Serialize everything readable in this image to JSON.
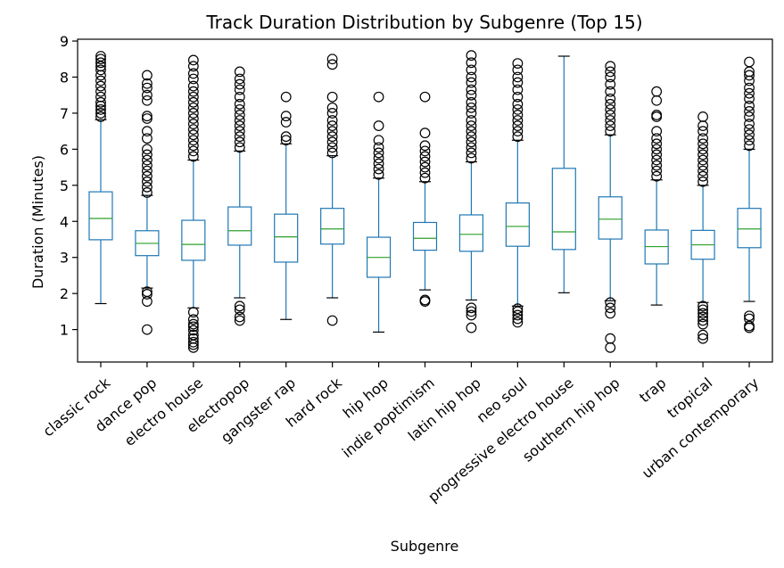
{
  "chart_data": {
    "type": "box",
    "title": "Track Duration Distribution by Subgenre (Top 15)",
    "xlabel": "Subgenre",
    "ylabel": "Duration (Minutes)",
    "ylim": [
      0.1,
      9.05
    ],
    "yticks": [
      1,
      2,
      3,
      4,
      5,
      6,
      7,
      8,
      9
    ],
    "grid": false,
    "colors": {
      "box": "#1f77b4",
      "median": "#2ca02c",
      "outlier": "#000000"
    },
    "categories": [
      "classic rock",
      "dance pop",
      "electro house",
      "electropop",
      "gangster rap",
      "hard rock",
      "hip hop",
      "indie poptimism",
      "latin hip hop",
      "neo soul",
      "progressive electro house",
      "southern hip hop",
      "trap",
      "tropical",
      "urban contemporary"
    ],
    "boxes": [
      {
        "whisker_low": 1.72,
        "q1": 3.49,
        "median": 4.08,
        "q3": 4.82,
        "whisker_high": 6.82,
        "outliers": [
          6.9,
          7.0,
          7.1,
          7.2,
          7.3,
          7.45,
          7.6,
          7.75,
          7.9,
          8.05,
          8.2,
          8.3,
          8.4,
          8.5,
          8.58
        ]
      },
      {
        "whisker_low": 2.15,
        "q1": 3.05,
        "median": 3.39,
        "q3": 3.74,
        "whisker_high": 4.72,
        "outliers": [
          1.0,
          1.78,
          1.98,
          2.05,
          4.8,
          4.95,
          5.1,
          5.25,
          5.4,
          5.55,
          5.7,
          5.85,
          6.0,
          6.3,
          6.5,
          6.85,
          6.92,
          7.35,
          7.5,
          7.7,
          7.82,
          8.05
        ]
      },
      {
        "whisker_low": 1.6,
        "q1": 2.92,
        "median": 3.36,
        "q3": 4.03,
        "whisker_high": 5.7,
        "outliers": [
          0.5,
          0.58,
          0.65,
          0.75,
          0.85,
          0.98,
          1.08,
          1.15,
          1.28,
          1.48,
          5.8,
          5.95,
          6.1,
          6.25,
          6.4,
          6.55,
          6.7,
          6.85,
          7.0,
          7.15,
          7.3,
          7.45,
          7.6,
          7.75,
          7.95,
          8.1,
          8.3,
          8.47
        ]
      },
      {
        "whisker_low": 1.88,
        "q1": 3.34,
        "median": 3.74,
        "q3": 4.4,
        "whisker_high": 5.95,
        "outliers": [
          1.25,
          1.35,
          1.55,
          1.65,
          6.05,
          6.2,
          6.35,
          6.5,
          6.65,
          6.8,
          6.95,
          7.1,
          7.25,
          7.45,
          7.65,
          7.8,
          7.95,
          8.15
        ]
      },
      {
        "whisker_low": 1.28,
        "q1": 2.87,
        "median": 3.57,
        "q3": 4.2,
        "whisker_high": 6.15,
        "outliers": [
          6.25,
          6.35,
          6.75,
          6.92,
          7.45
        ]
      },
      {
        "whisker_low": 1.88,
        "q1": 3.37,
        "median": 3.79,
        "q3": 4.36,
        "whisker_high": 5.82,
        "outliers": [
          1.25,
          5.9,
          6.05,
          6.2,
          6.35,
          6.5,
          6.65,
          6.8,
          7.0,
          7.15,
          7.45,
          8.35,
          8.5
        ]
      },
      {
        "whisker_low": 0.93,
        "q1": 2.45,
        "median": 3.0,
        "q3": 3.56,
        "whisker_high": 5.2,
        "outliers": [
          5.3,
          5.45,
          5.6,
          5.75,
          5.9,
          6.05,
          6.25,
          6.65,
          7.45
        ]
      },
      {
        "whisker_low": 2.1,
        "q1": 3.2,
        "median": 3.53,
        "q3": 3.97,
        "whisker_high": 5.1,
        "outliers": [
          1.78,
          1.82,
          5.2,
          5.35,
          5.5,
          5.65,
          5.8,
          5.95,
          6.1,
          6.45,
          7.45
        ]
      },
      {
        "whisker_low": 1.82,
        "q1": 3.17,
        "median": 3.64,
        "q3": 4.18,
        "whisker_high": 5.65,
        "outliers": [
          1.05,
          1.4,
          1.5,
          1.6,
          5.75,
          5.9,
          6.05,
          6.2,
          6.35,
          6.5,
          6.65,
          6.8,
          7.0,
          7.15,
          7.3,
          7.5,
          7.65,
          7.85,
          8.0,
          8.2,
          8.4,
          8.6
        ]
      },
      {
        "whisker_low": 1.65,
        "q1": 3.31,
        "median": 3.86,
        "q3": 4.51,
        "whisker_high": 6.25,
        "outliers": [
          1.2,
          1.3,
          1.4,
          1.5,
          1.58,
          6.35,
          6.5,
          6.65,
          6.8,
          6.95,
          7.1,
          7.25,
          7.45,
          7.65,
          7.85,
          8.0,
          8.2,
          8.38
        ]
      },
      {
        "whisker_low": 2.02,
        "q1": 3.22,
        "median": 3.71,
        "q3": 5.47,
        "whisker_high": 8.58,
        "outliers": []
      },
      {
        "whisker_low": 1.8,
        "q1": 3.51,
        "median": 4.06,
        "q3": 4.68,
        "whisker_high": 6.4,
        "outliers": [
          0.5,
          0.75,
          1.45,
          1.6,
          1.75,
          6.5,
          6.65,
          6.8,
          6.95,
          7.1,
          7.25,
          7.4,
          7.6,
          7.8,
          8.0,
          8.15,
          8.3
        ]
      },
      {
        "whisker_low": 1.68,
        "q1": 2.82,
        "median": 3.3,
        "q3": 3.76,
        "whisker_high": 5.15,
        "outliers": [
          5.25,
          5.4,
          5.55,
          5.7,
          5.85,
          6.0,
          6.15,
          6.3,
          6.5,
          6.9,
          6.95,
          7.35,
          7.6
        ]
      },
      {
        "whisker_low": 1.75,
        "q1": 2.95,
        "median": 3.35,
        "q3": 3.75,
        "whisker_high": 5.0,
        "outliers": [
          0.75,
          0.85,
          1.15,
          1.25,
          1.35,
          1.45,
          1.55,
          1.65,
          5.1,
          5.25,
          5.4,
          5.55,
          5.7,
          5.85,
          6.0,
          6.15,
          6.3,
          6.5,
          6.65,
          6.9
        ]
      },
      {
        "whisker_low": 1.78,
        "q1": 3.27,
        "median": 3.79,
        "q3": 4.36,
        "whisker_high": 6.0,
        "outliers": [
          1.05,
          1.1,
          1.3,
          1.38,
          6.1,
          6.25,
          6.4,
          6.55,
          6.7,
          6.9,
          7.05,
          7.2,
          7.4,
          7.55,
          7.7,
          7.9,
          8.05,
          8.15,
          8.42
        ]
      }
    ]
  }
}
